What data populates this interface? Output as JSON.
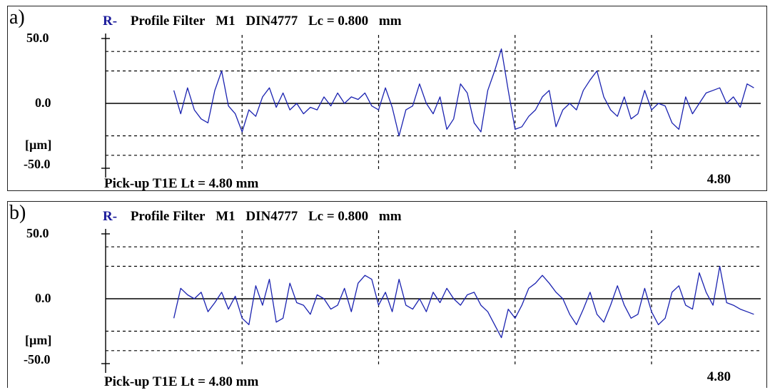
{
  "chart_data": [
    {
      "type": "line",
      "panel_label": "a)",
      "header": {
        "r_label": "R-",
        "words": [
          "Profile Filter",
          "M1",
          "DIN4777",
          "Lc = 0.800",
          "mm"
        ]
      },
      "y_tick_labels": [
        "50.0",
        "0.0",
        "[µm]",
        "-50.0"
      ],
      "ylim": [
        -50,
        50
      ],
      "xlim": [
        0,
        4.8
      ],
      "x_end_label": "4.80",
      "footer": "Pick-up T1E    Lt = 4.80  mm",
      "grid": true,
      "line_color": "#1a22b0",
      "series": [
        {
          "x": [
            0.5,
            0.55,
            0.6,
            0.65,
            0.7,
            0.75,
            0.8,
            0.85,
            0.9,
            0.95,
            1.0,
            1.05,
            1.1,
            1.15,
            1.2,
            1.25,
            1.3,
            1.35,
            1.4,
            1.45,
            1.5,
            1.55,
            1.6,
            1.65,
            1.7,
            1.75,
            1.8,
            1.85,
            1.9,
            1.95,
            2.0,
            2.05,
            2.1,
            2.15,
            2.2,
            2.25,
            2.3,
            2.35,
            2.4,
            2.45,
            2.5,
            2.55,
            2.6,
            2.65,
            2.7,
            2.75,
            2.8,
            2.85,
            2.9,
            2.95,
            3.0,
            3.05,
            3.1,
            3.15,
            3.2,
            3.25,
            3.3,
            3.35,
            3.4,
            3.45,
            3.5,
            3.55,
            3.6,
            3.65,
            3.7,
            3.75,
            3.8,
            3.85,
            3.9,
            3.95,
            4.0,
            4.05,
            4.1,
            4.15,
            4.2,
            4.25,
            4.3,
            4.35,
            4.4,
            4.45,
            4.5,
            4.55,
            4.6,
            4.65,
            4.7,
            4.75
          ],
          "y": [
            10,
            -8,
            12,
            -5,
            -12,
            -15,
            10,
            25,
            -2,
            -8,
            -22,
            -5,
            -10,
            5,
            12,
            -3,
            8,
            -5,
            0,
            -8,
            -3,
            -5,
            5,
            -2,
            8,
            0,
            5,
            3,
            8,
            -2,
            -5,
            12,
            -3,
            -25,
            -5,
            -2,
            15,
            0,
            -8,
            5,
            -20,
            -12,
            15,
            8,
            -15,
            -22,
            10,
            25,
            42,
            10,
            -20,
            -18,
            -10,
            -5,
            5,
            10,
            -18,
            -5,
            0,
            -5,
            10,
            18,
            25,
            5,
            -5,
            -10,
            5,
            -12,
            -8,
            10,
            -5,
            0,
            -2,
            -15,
            -20,
            5,
            -8,
            0,
            8,
            10,
            12,
            0,
            5,
            -3,
            15,
            12
          ]
        }
      ]
    },
    {
      "type": "line",
      "panel_label": "b)",
      "header": {
        "r_label": "R-",
        "words": [
          "Profile Filter",
          "M1",
          "DIN4777",
          "Lc = 0.800",
          "mm"
        ]
      },
      "y_tick_labels": [
        "50.0",
        "0.0",
        "[µm]",
        "-50.0"
      ],
      "ylim": [
        -50,
        50
      ],
      "xlim": [
        0,
        4.8
      ],
      "x_end_label": "4.80",
      "footer": "Pick-up T1E    Lt = 4.80  mm",
      "grid": true,
      "line_color": "#1a22b0",
      "series": [
        {
          "x": [
            0.5,
            0.55,
            0.6,
            0.65,
            0.7,
            0.75,
            0.8,
            0.85,
            0.9,
            0.95,
            1.0,
            1.05,
            1.1,
            1.15,
            1.2,
            1.25,
            1.3,
            1.35,
            1.4,
            1.45,
            1.5,
            1.55,
            1.6,
            1.65,
            1.7,
            1.75,
            1.8,
            1.85,
            1.9,
            1.95,
            2.0,
            2.05,
            2.1,
            2.15,
            2.2,
            2.25,
            2.3,
            2.35,
            2.4,
            2.45,
            2.5,
            2.55,
            2.6,
            2.65,
            2.7,
            2.75,
            2.8,
            2.85,
            2.9,
            2.95,
            3.0,
            3.05,
            3.1,
            3.15,
            3.2,
            3.25,
            3.3,
            3.35,
            3.4,
            3.45,
            3.5,
            3.55,
            3.6,
            3.65,
            3.7,
            3.75,
            3.8,
            3.85,
            3.9,
            3.95,
            4.0,
            4.05,
            4.1,
            4.15,
            4.2,
            4.25,
            4.3,
            4.35,
            4.4,
            4.45,
            4.5,
            4.55,
            4.6,
            4.65,
            4.7,
            4.75
          ],
          "y": [
            -15,
            8,
            3,
            0,
            5,
            -10,
            -3,
            5,
            -8,
            2,
            -15,
            -20,
            10,
            -5,
            15,
            -18,
            -15,
            12,
            -3,
            -5,
            -12,
            3,
            0,
            -8,
            -5,
            8,
            -10,
            12,
            18,
            15,
            -5,
            5,
            -10,
            15,
            -5,
            -8,
            0,
            -10,
            5,
            -3,
            8,
            0,
            -5,
            3,
            5,
            -5,
            -10,
            -20,
            -30,
            -8,
            -15,
            -5,
            8,
            12,
            18,
            12,
            5,
            0,
            -12,
            -20,
            -8,
            5,
            -12,
            -18,
            -5,
            10,
            -5,
            -15,
            -12,
            8,
            -10,
            -20,
            -15,
            5,
            10,
            -5,
            -8,
            20,
            5,
            -5,
            25,
            -3,
            -5,
            -8,
            -10,
            -12
          ]
        }
      ]
    }
  ]
}
